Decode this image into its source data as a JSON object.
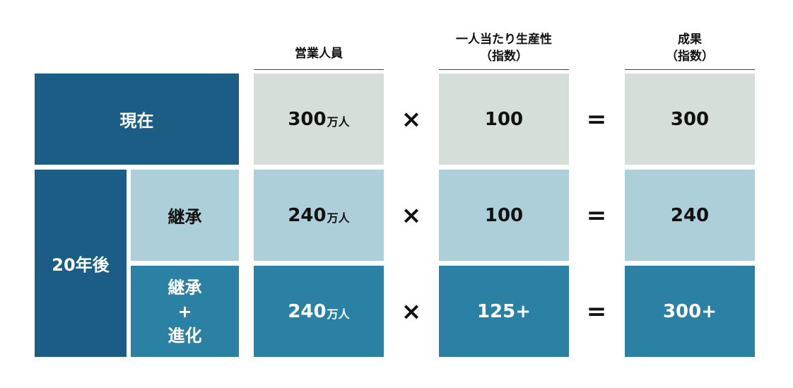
{
  "headers": {
    "sales_staff": "営業人員",
    "productivity_line1": "一人当たり生産性",
    "productivity_line2": "（指数）",
    "result_line1": "成果",
    "result_line2": "（指数）"
  },
  "operators": {
    "times": "×",
    "equals": "="
  },
  "rows": {
    "current": {
      "label": "現在",
      "staff_value": "300",
      "staff_unit": "万人",
      "productivity": "100",
      "result": "300"
    },
    "future_group_label": "20年後",
    "inherit": {
      "label": "継承",
      "staff_value": "240",
      "staff_unit": "万人",
      "productivity": "100",
      "result": "240"
    },
    "evolve": {
      "label_line1": "継承",
      "label_line2": "+",
      "label_line3": "進化",
      "staff_value": "240",
      "staff_unit": "万人",
      "productivity": "125+",
      "result": "300+"
    }
  },
  "colors": {
    "dark_blue": "#1b5d85",
    "gray_green": "#d5ded8",
    "light_blue": "#adcfd9",
    "teal": "#2a81a3"
  }
}
